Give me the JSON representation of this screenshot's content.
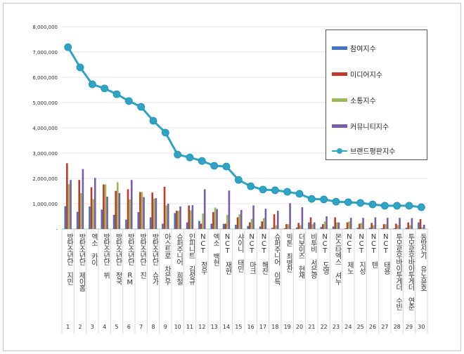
{
  "chart_data": {
    "type": "bar+line",
    "categories": [
      "방탄소년단 지민",
      "방탄소년단 제이홉",
      "엑소 카이",
      "방탄소년단 뷔",
      "방탄소년단 정국",
      "방탄소년단 RM",
      "방탄소년단 진",
      "방탄소년단 슈가",
      "아스트로 차은우",
      "슈퍼주니어 희철",
      "인피니트 김성규",
      "NCT 정우",
      "엑소 백현",
      "NCT 재현",
      "샤이니 태민",
      "NCT 마크",
      "NCT 해찬",
      "슈퍼주니어 이특",
      "빅톤 최병찬",
      "더보이즈 현재",
      "비투비 서은광",
      "NCT 도영",
      "몬스타엑스 셔누",
      "NCT 제노",
      "NCT 지성",
      "NCT 텐",
      "NCT 태용",
      "투모로우바이투게더 수빈",
      "투모로우바이투게더 연준",
      "동방신기 유노윤호"
    ],
    "ranks": [
      "1",
      "2",
      "3",
      "4",
      "5",
      "6",
      "7",
      "8",
      "9",
      "10",
      "11",
      "12",
      "13",
      "14",
      "15",
      "16",
      "17",
      "18",
      "19",
      "20",
      "21",
      "22",
      "23",
      "24",
      "25",
      "26",
      "27",
      "28",
      "29",
      "30"
    ],
    "yticks": [
      "-",
      "1,000,000",
      "2,000,000",
      "3,000,000",
      "4,000,000",
      "5,000,000",
      "6,000,000",
      "7,000,000",
      "8,000,000"
    ],
    "ylim": [
      0,
      8000000
    ],
    "grid": true,
    "legend_position": "top-right",
    "series": [
      {
        "name": "참여지수",
        "kind": "bar",
        "color": "#4472c4",
        "values": [
          900000,
          680000,
          890000,
          770000,
          560000,
          370000,
          670000,
          460000,
          210000,
          630000,
          260000,
          320000,
          210000,
          200000,
          170000,
          120000,
          100000,
          50000,
          30000,
          60000,
          260000,
          80000,
          100000,
          30000,
          50000,
          50000,
          30000,
          30000,
          50000,
          260000
        ]
      },
      {
        "name": "미디어지수",
        "kind": "bar",
        "color": "#c0392b",
        "values": [
          2600000,
          1940000,
          1650000,
          1760000,
          1510000,
          1570000,
          1460000,
          1440000,
          1670000,
          720000,
          930000,
          210000,
          670000,
          210000,
          460000,
          260000,
          300000,
          580000,
          190000,
          240000,
          460000,
          190000,
          460000,
          260000,
          210000,
          240000,
          190000,
          210000,
          260000,
          390000
        ]
      },
      {
        "name": "소통지수",
        "kind": "bar",
        "color": "#9bbb59",
        "values": [
          1780000,
          1420000,
          1180000,
          1760000,
          1850000,
          1170000,
          1460000,
          1200000,
          930000,
          720000,
          740000,
          610000,
          850000,
          560000,
          580000,
          400000,
          430000,
          150000,
          190000,
          150000,
          190000,
          300000,
          260000,
          300000,
          240000,
          150000,
          190000,
          150000,
          150000,
          70000
        ]
      },
      {
        "name": "커뮤니티지수",
        "kind": "bar",
        "color": "#7b5ca8",
        "values": [
          1940000,
          2370000,
          2020000,
          1280000,
          1420000,
          1940000,
          1260000,
          1220000,
          1000000,
          890000,
          940000,
          1570000,
          790000,
          1520000,
          750000,
          930000,
          800000,
          720000,
          1020000,
          860000,
          260000,
          500000,
          260000,
          440000,
          440000,
          460000,
          440000,
          440000,
          430000,
          170000
        ]
      },
      {
        "name": "브랜드평판지수",
        "kind": "line",
        "color": "#2fa4c4",
        "values": [
          7190000,
          6390000,
          5720000,
          5560000,
          5330000,
          5060000,
          4830000,
          4280000,
          3810000,
          2940000,
          2830000,
          2690000,
          2500000,
          2470000,
          1940000,
          1690000,
          1560000,
          1530000,
          1470000,
          1390000,
          1190000,
          1170000,
          1080000,
          1060000,
          1030000,
          970000,
          920000,
          920000,
          920000,
          860000
        ]
      }
    ]
  }
}
